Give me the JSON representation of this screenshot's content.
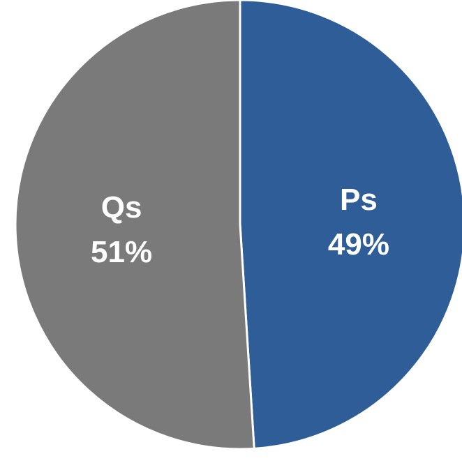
{
  "chart_data": {
    "type": "pie",
    "slices": [
      {
        "label": "Ps",
        "value": 49,
        "value_label": "49%",
        "color": "#2f5d97"
      },
      {
        "label": "Qs",
        "value": 51,
        "value_label": "51%",
        "color": "#7a7a7a"
      }
    ],
    "start_angle_deg": 0,
    "direction": "clockwise",
    "separator_color": "#ffffff",
    "legend": "none"
  }
}
